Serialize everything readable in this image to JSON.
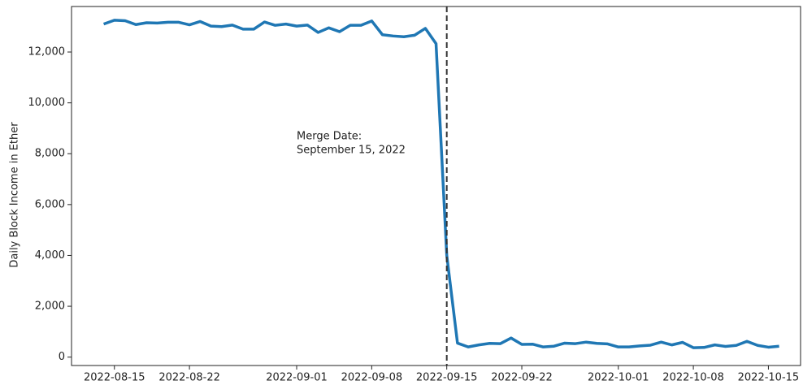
{
  "chart_data": {
    "type": "line",
    "ylabel": "Daily Block Income in Ether",
    "x": [
      "2022-08-14",
      "2022-08-15",
      "2022-08-16",
      "2022-08-17",
      "2022-08-18",
      "2022-08-19",
      "2022-08-20",
      "2022-08-21",
      "2022-08-22",
      "2022-08-23",
      "2022-08-24",
      "2022-08-25",
      "2022-08-26",
      "2022-08-27",
      "2022-08-28",
      "2022-08-29",
      "2022-08-30",
      "2022-08-31",
      "2022-09-01",
      "2022-09-02",
      "2022-09-03",
      "2022-09-04",
      "2022-09-05",
      "2022-09-06",
      "2022-09-07",
      "2022-09-08",
      "2022-09-09",
      "2022-09-10",
      "2022-09-11",
      "2022-09-12",
      "2022-09-13",
      "2022-09-14",
      "2022-09-15",
      "2022-09-16",
      "2022-09-17",
      "2022-09-18",
      "2022-09-19",
      "2022-09-20",
      "2022-09-21",
      "2022-09-22",
      "2022-09-23",
      "2022-09-24",
      "2022-09-25",
      "2022-09-26",
      "2022-09-27",
      "2022-09-28",
      "2022-09-29",
      "2022-09-30",
      "2022-10-01",
      "2022-10-02",
      "2022-10-03",
      "2022-10-04",
      "2022-10-05",
      "2022-10-06",
      "2022-10-07",
      "2022-10-08",
      "2022-10-09",
      "2022-10-10",
      "2022-10-11",
      "2022-10-12",
      "2022-10-13",
      "2022-10-14",
      "2022-10-15",
      "2022-10-16"
    ],
    "series": [
      {
        "name": "Daily Block Income",
        "color": "#1f77b4",
        "values": [
          13100,
          13250,
          13230,
          13080,
          13150,
          13140,
          13170,
          13170,
          13070,
          13200,
          13020,
          13000,
          13060,
          12900,
          12900,
          13180,
          13050,
          13100,
          13020,
          13060,
          12770,
          12950,
          12800,
          13050,
          13050,
          13220,
          12680,
          12630,
          12600,
          12660,
          12930,
          12330,
          4000,
          550,
          400,
          480,
          540,
          530,
          750,
          500,
          510,
          400,
          430,
          550,
          530,
          590,
          540,
          520,
          400,
          400,
          440,
          470,
          590,
          480,
          580,
          370,
          380,
          480,
          420,
          460,
          620,
          460,
          390,
          430
        ]
      }
    ],
    "xlim": [
      "2022-08-11",
      "2022-10-18"
    ],
    "xticks": [
      "2022-08-15",
      "2022-08-22",
      "2022-09-01",
      "2022-09-08",
      "2022-09-15",
      "2022-09-22",
      "2022-10-01",
      "2022-10-08",
      "2022-10-15"
    ],
    "ylim": [
      -330,
      13790
    ],
    "yticks": [
      0,
      {
        "value": 2000,
        "label": "2,000"
      },
      {
        "value": 4000,
        "label": "4,000"
      },
      {
        "value": 6000,
        "label": "6,000"
      },
      {
        "value": 8000,
        "label": "8,000"
      },
      {
        "value": 10000,
        "label": "10,000"
      },
      {
        "value": 12000,
        "label": "12,000"
      }
    ],
    "vline": "2022-09-15",
    "annotation": [
      "Merge Date:",
      "September 15, 2022"
    ],
    "grid": false
  }
}
